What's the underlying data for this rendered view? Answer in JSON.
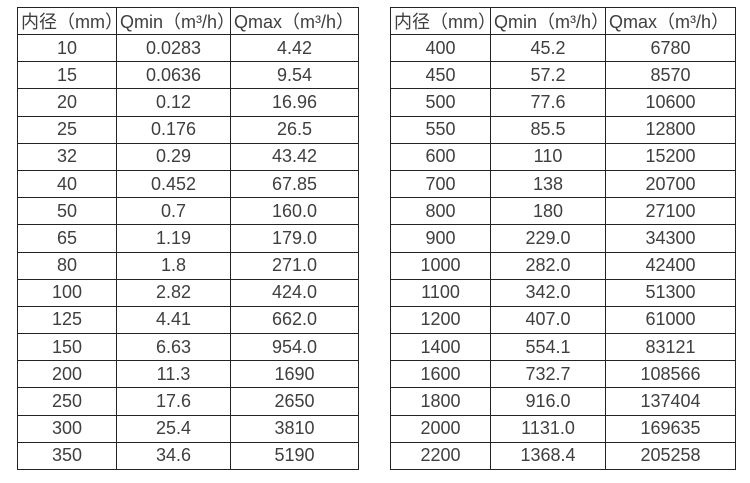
{
  "page": {
    "background_color": "#ffffff",
    "border_color": "#232323",
    "text_color": "#3f3f3f"
  },
  "tables": [
    {
      "name": "flow-rate-table-small-diameters",
      "headers": [
        "内径（mm）",
        "Qmin（m³/h）",
        "Qmax（m³/h）"
      ],
      "rows": [
        [
          "10",
          "0.0283",
          "4.42"
        ],
        [
          "15",
          "0.0636",
          "9.54"
        ],
        [
          "20",
          "0.12",
          "16.96"
        ],
        [
          "25",
          "0.176",
          "26.5"
        ],
        [
          "32",
          "0.29",
          "43.42"
        ],
        [
          "40",
          "0.452",
          "67.85"
        ],
        [
          "50",
          "0.7",
          "160.0"
        ],
        [
          "65",
          "1.19",
          "179.0"
        ],
        [
          "80",
          "1.8",
          "271.0"
        ],
        [
          "100",
          "2.82",
          "424.0"
        ],
        [
          "125",
          "4.41",
          "662.0"
        ],
        [
          "150",
          "6.63",
          "954.0"
        ],
        [
          "200",
          "11.3",
          "1690"
        ],
        [
          "250",
          "17.6",
          "2650"
        ],
        [
          "300",
          "25.4",
          "3810"
        ],
        [
          "350",
          "34.6",
          "5190"
        ]
      ]
    },
    {
      "name": "flow-rate-table-large-diameters",
      "headers": [
        "内径（mm）",
        "Qmin（m³/h）",
        "Qmax（m³/h）"
      ],
      "rows": [
        [
          "400",
          "45.2",
          "6780"
        ],
        [
          "450",
          "57.2",
          "8570"
        ],
        [
          "500",
          "77.6",
          "10600"
        ],
        [
          "550",
          "85.5",
          "12800"
        ],
        [
          "600",
          "110",
          "15200"
        ],
        [
          "700",
          "138",
          "20700"
        ],
        [
          "800",
          "180",
          "27100"
        ],
        [
          "900",
          "229.0",
          "34300"
        ],
        [
          "1000",
          "282.0",
          "42400"
        ],
        [
          "1100",
          "342.0",
          "51300"
        ],
        [
          "1200",
          "407.0",
          "61000"
        ],
        [
          "1400",
          "554.1",
          "83121"
        ],
        [
          "1600",
          "732.7",
          "108566"
        ],
        [
          "1800",
          "916.0",
          "137404"
        ],
        [
          "2000",
          "1131.0",
          "169635"
        ],
        [
          "2200",
          "1368.4",
          "205258"
        ]
      ]
    }
  ]
}
